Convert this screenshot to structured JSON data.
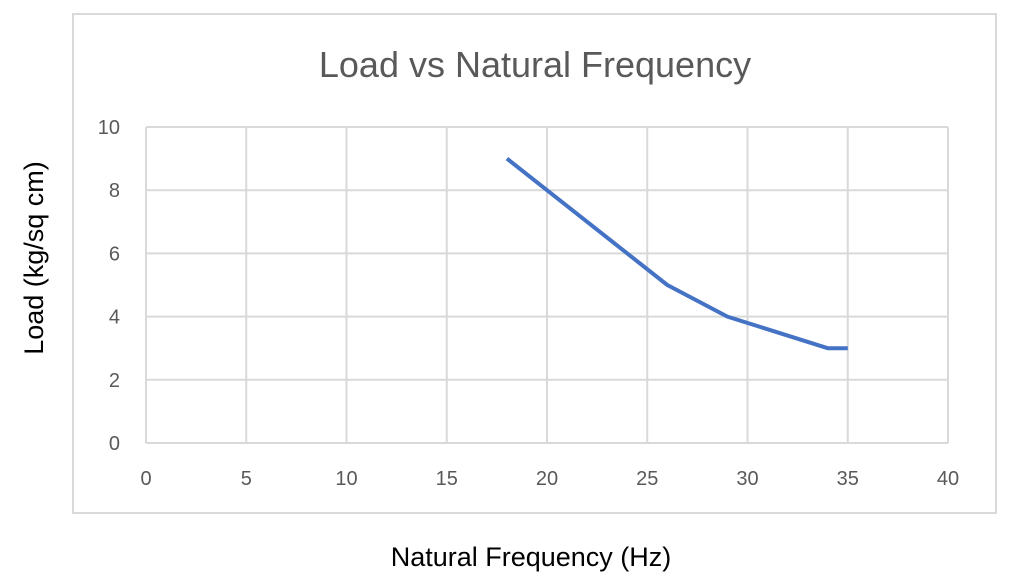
{
  "chart_data": {
    "type": "line",
    "title": "Load vs Natural Frequency",
    "xlabel": "Natural Frequency (Hz)",
    "ylabel": "Load (kg/sq cm)",
    "xlim": [
      0,
      40
    ],
    "ylim": [
      0,
      10
    ],
    "x_ticks": [
      0,
      5,
      10,
      15,
      20,
      25,
      30,
      35,
      40
    ],
    "y_ticks": [
      0,
      2,
      4,
      6,
      8,
      10
    ],
    "grid": true,
    "legend": "none",
    "series": [
      {
        "x": [
          18,
          20,
          26,
          29,
          34,
          35
        ],
        "y": [
          9,
          8,
          5,
          4,
          3,
          3
        ],
        "color": "#4472C4"
      }
    ]
  },
  "colors": {
    "gridline": "#d9d9d9",
    "chart_border": "#d9d9d9",
    "title": "#595959",
    "tick_label": "#595959",
    "axis_label": "#000000"
  }
}
